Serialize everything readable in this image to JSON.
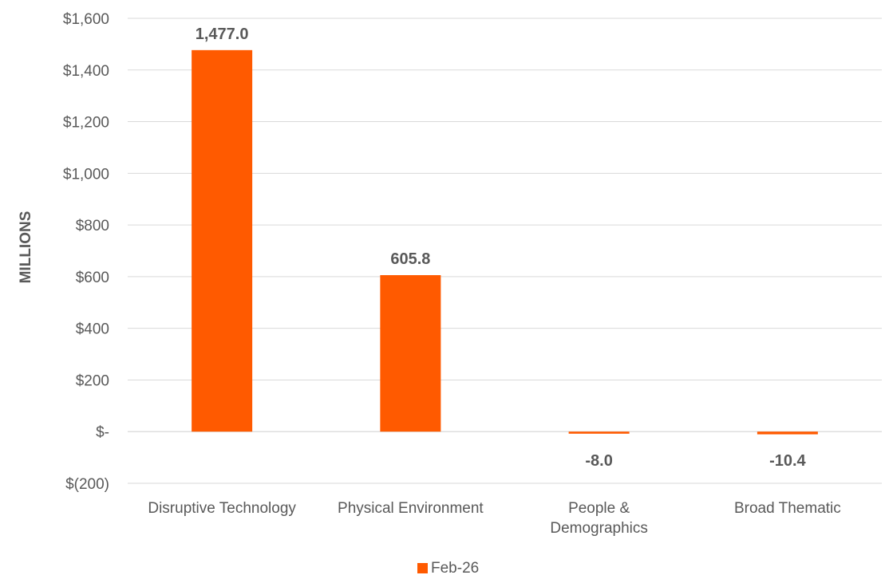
{
  "chart_data": {
    "type": "bar",
    "categories": [
      [
        "Disruptive Technology"
      ],
      [
        "Physical Environment"
      ],
      [
        "People &",
        "Demographics"
      ],
      [
        "Broad Thematic"
      ]
    ],
    "series": [
      {
        "name": "Feb-26",
        "values": [
          1477.0,
          605.8,
          -8.0,
          -10.4
        ],
        "data_labels": [
          "1,477.0",
          "605.8",
          "-8.0",
          "-10.4"
        ],
        "color": "#ff5a00"
      }
    ],
    "ylabel": "MILLIONS",
    "ylim": [
      -200,
      1600
    ],
    "yticks": [
      {
        "value": 1600,
        "label": "$1,600"
      },
      {
        "value": 1400,
        "label": "$1,400"
      },
      {
        "value": 1200,
        "label": "$1,200"
      },
      {
        "value": 1000,
        "label": "$1,000"
      },
      {
        "value": 800,
        "label": "$800"
      },
      {
        "value": 600,
        "label": "$600"
      },
      {
        "value": 400,
        "label": "$400"
      },
      {
        "value": 200,
        "label": "$200"
      },
      {
        "value": 0,
        "label": "$-"
      },
      {
        "value": -200,
        "label": "$(200)"
      }
    ],
    "grid": true,
    "legend": "bottom"
  }
}
